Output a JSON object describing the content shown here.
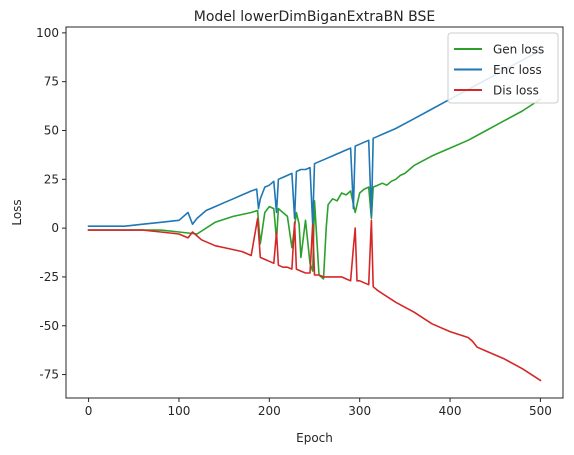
{
  "chart_data": {
    "type": "line",
    "title": "Model lowerDimBiganExtraBN BSE",
    "xlabel": "Epoch",
    "ylabel": "Loss",
    "xlim": [
      -25,
      525
    ],
    "ylim": [
      -87,
      103
    ],
    "xticks": [
      0,
      100,
      200,
      300,
      400,
      500
    ],
    "yticks": [
      -75,
      -50,
      -25,
      0,
      25,
      50,
      75,
      100
    ],
    "grid": false,
    "legend_position": "top-right",
    "series": [
      {
        "name": "Gen loss",
        "color": "#2ca02c",
        "x": [
          0,
          20,
          40,
          60,
          80,
          100,
          120,
          140,
          160,
          180,
          187,
          190,
          195,
          200,
          205,
          208,
          210,
          215,
          220,
          225,
          230,
          233,
          235,
          240,
          245,
          248,
          250,
          255,
          260,
          263,
          265,
          270,
          275,
          280,
          285,
          290,
          295,
          300,
          305,
          310,
          313,
          315,
          320,
          325,
          330,
          335,
          340,
          345,
          350,
          360,
          380,
          400,
          420,
          440,
          460,
          480,
          500
        ],
        "y": [
          -1,
          -1,
          -1,
          -1,
          -1,
          -2,
          -3,
          3,
          6,
          8,
          9,
          -8,
          8,
          11,
          10,
          -6,
          10,
          8,
          6,
          -10,
          8,
          2,
          -15,
          4,
          -18,
          -22,
          14,
          -24,
          -26,
          0,
          12,
          15,
          14,
          18,
          17,
          19,
          8,
          18,
          20,
          21,
          5,
          21,
          22,
          23,
          22,
          24,
          25,
          27,
          28,
          32,
          37,
          41,
          45,
          50,
          55,
          60,
          66
        ]
      },
      {
        "name": "Enc loss",
        "color": "#1f77b4",
        "x": [
          0,
          20,
          40,
          60,
          80,
          100,
          110,
          115,
          120,
          125,
          130,
          140,
          150,
          160,
          170,
          180,
          186,
          188,
          190,
          195,
          200,
          205,
          208,
          210,
          215,
          220,
          225,
          228,
          230,
          235,
          240,
          245,
          248,
          250,
          255,
          260,
          265,
          270,
          275,
          280,
          285,
          290,
          293,
          295,
          300,
          305,
          310,
          313,
          315,
          320,
          340,
          360,
          380,
          400,
          420,
          440,
          460,
          480,
          500
        ],
        "y": [
          1,
          1,
          1,
          2,
          3,
          4,
          8,
          2,
          5,
          7,
          9,
          11,
          13,
          15,
          17,
          19,
          20,
          10,
          15,
          21,
          22,
          24,
          8,
          25,
          26,
          27,
          28,
          5,
          29,
          30,
          30,
          31,
          2,
          33,
          34,
          35,
          36,
          37,
          38,
          39,
          40,
          41,
          10,
          42,
          43,
          44,
          45,
          6,
          46,
          47,
          51,
          56,
          61,
          66,
          71,
          76,
          81,
          86,
          91
        ]
      },
      {
        "name": "Dis loss",
        "color": "#d62728",
        "x": [
          0,
          20,
          40,
          60,
          80,
          100,
          110,
          115,
          120,
          125,
          130,
          140,
          150,
          160,
          170,
          180,
          187,
          190,
          195,
          200,
          205,
          208,
          210,
          215,
          220,
          225,
          228,
          230,
          235,
          240,
          245,
          248,
          250,
          255,
          260,
          265,
          270,
          275,
          280,
          285,
          290,
          293,
          295,
          297,
          300,
          305,
          310,
          313,
          315,
          320,
          340,
          360,
          380,
          400,
          420,
          425,
          430,
          440,
          460,
          480,
          500
        ],
        "y": [
          -1,
          -1,
          -1,
          -1,
          -2,
          -3,
          -5,
          -2,
          -4,
          -6,
          -7,
          -9,
          -10,
          -11,
          -12,
          -14,
          5,
          -15,
          -16,
          -17,
          -18,
          -2,
          -19,
          -20,
          -20,
          -21,
          3,
          -21,
          -22,
          -23,
          -23,
          2,
          -24,
          -24,
          -25,
          -25,
          -25,
          -25,
          -25,
          -26,
          -27,
          -10,
          0,
          -27,
          -27,
          -28,
          -29,
          4,
          -30,
          -32,
          -38,
          -43,
          -49,
          -53,
          -56,
          -58,
          -61,
          -63,
          -67,
          -72,
          -78
        ]
      }
    ]
  }
}
